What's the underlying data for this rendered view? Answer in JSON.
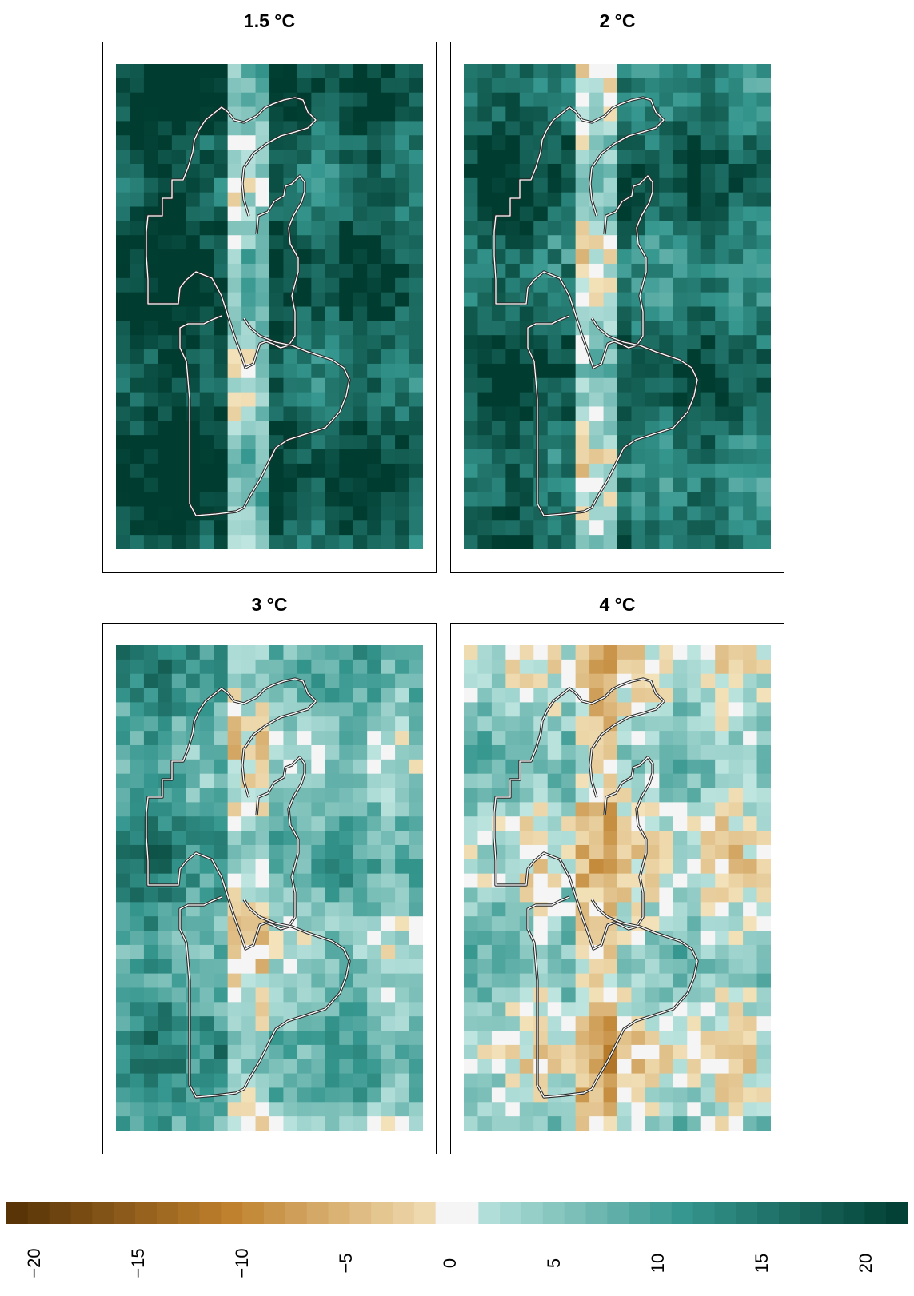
{
  "panels": [
    {
      "title": "1.5 °C",
      "key": "p15"
    },
    {
      "title": "2 °C",
      "key": "p2"
    },
    {
      "title": "3 °C",
      "key": "p3"
    },
    {
      "title": "4 °C",
      "key": "p4"
    }
  ],
  "colorbar": {
    "range": [
      -21,
      21
    ],
    "ticks": [
      "−20",
      "−15",
      "−10",
      "−5",
      "0",
      "5",
      "10",
      "15",
      "20"
    ],
    "tick_values": [
      -20,
      -15,
      -10,
      -5,
      0,
      5,
      10,
      15,
      20
    ],
    "colors": {
      "brown_dark": "#543005",
      "brown_mid": "#bf812d",
      "tan_light": "#f6e8c3",
      "neutral": "#f5f5f5",
      "teal_light": "#c7eae5",
      "teal_mid": "#35978f",
      "teal_dark": "#003c30"
    }
  },
  "chart_data": [
    {
      "type": "heatmap",
      "title": "1.5 °C",
      "value_range": [
        -21,
        21
      ],
      "column_pattern": "strong positive change across most of the domain; near-zero to moderate values in a north-south band along the central valley",
      "zones": {
        "west": 20,
        "center": 4,
        "east": 17
      }
    },
    {
      "type": "heatmap",
      "title": "2 °C",
      "value_range": [
        -21,
        21
      ],
      "zones": {
        "west": 17,
        "center": 1,
        "east": 15
      }
    },
    {
      "type": "heatmap",
      "title": "3 °C",
      "value_range": [
        -21,
        21
      ],
      "zones": {
        "west": 10,
        "center": -1,
        "east": 6
      }
    },
    {
      "type": "heatmap",
      "title": "4 °C",
      "value_range": [
        -21,
        21
      ],
      "zones": {
        "west": 3,
        "center": -5,
        "east": 2
      }
    }
  ]
}
